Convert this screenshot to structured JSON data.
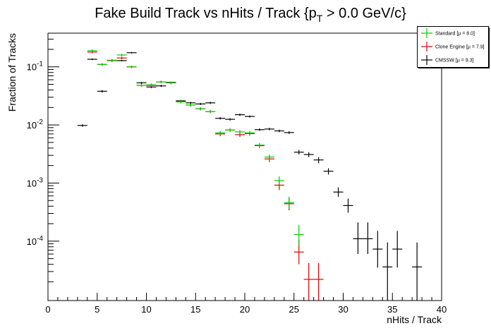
{
  "chart_data": {
    "type": "scatter",
    "title": "Fake Build Track vs nHits / Track {p",
    "title_sub": "T",
    "title_tail": " > 0.0 GeV/c}",
    "xlabel": "nHits / Track",
    "ylabel": "Fraction of Tracks",
    "xlim": [
      0,
      40
    ],
    "ylim": [
      9.5e-06,
      0.38
    ],
    "yscale": "log",
    "x_ticks": [
      "0",
      "5",
      "10",
      "15",
      "20",
      "25",
      "30",
      "35",
      "40"
    ],
    "y_ticks": [
      {
        "base": "10",
        "exp": "-1",
        "value": 0.1
      },
      {
        "base": "10",
        "exp": "-2",
        "value": 0.01
      },
      {
        "base": "10",
        "exp": "-3",
        "value": 0.001
      },
      {
        "base": "10",
        "exp": "-4",
        "value": 0.0001
      }
    ],
    "legend_position": "top-right",
    "series": [
      {
        "name": "Standard",
        "legend_text": "Standard  [μ = 8.0]",
        "color": "#00cc00",
        "points": [
          {
            "x": 4.5,
            "y": 0.19,
            "ylo": 0.18,
            "yhi": 0.2
          },
          {
            "x": 5.5,
            "y": 0.11,
            "ylo": 0.104,
            "yhi": 0.116
          },
          {
            "x": 6.5,
            "y": 0.13,
            "ylo": 0.123,
            "yhi": 0.137
          },
          {
            "x": 7.5,
            "y": 0.16,
            "ylo": 0.152,
            "yhi": 0.168
          },
          {
            "x": 8.5,
            "y": 0.1,
            "ylo": 0.095,
            "yhi": 0.105
          },
          {
            "x": 9.5,
            "y": 0.048,
            "ylo": 0.045,
            "yhi": 0.051
          },
          {
            "x": 10.5,
            "y": 0.049,
            "ylo": 0.046,
            "yhi": 0.052
          },
          {
            "x": 11.5,
            "y": 0.055,
            "ylo": 0.052,
            "yhi": 0.058
          },
          {
            "x": 12.5,
            "y": 0.053,
            "ylo": 0.05,
            "yhi": 0.056
          },
          {
            "x": 13.5,
            "y": 0.025,
            "ylo": 0.0235,
            "yhi": 0.0265
          },
          {
            "x": 14.5,
            "y": 0.022,
            "ylo": 0.0207,
            "yhi": 0.0233
          },
          {
            "x": 15.5,
            "y": 0.019,
            "ylo": 0.0178,
            "yhi": 0.0202
          },
          {
            "x": 16.5,
            "y": 0.017,
            "ylo": 0.0159,
            "yhi": 0.0181
          },
          {
            "x": 17.5,
            "y": 0.0073,
            "ylo": 0.0067,
            "yhi": 0.0079
          },
          {
            "x": 18.5,
            "y": 0.0082,
            "ylo": 0.0076,
            "yhi": 0.0088
          },
          {
            "x": 19.5,
            "y": 0.0076,
            "ylo": 0.007,
            "yhi": 0.0082
          },
          {
            "x": 20.5,
            "y": 0.0073,
            "ylo": 0.0067,
            "yhi": 0.0079
          },
          {
            "x": 21.5,
            "y": 0.0045,
            "ylo": 0.0041,
            "yhi": 0.0049
          },
          {
            "x": 22.5,
            "y": 0.0028,
            "ylo": 0.0025,
            "yhi": 0.0031
          },
          {
            "x": 23.5,
            "y": 0.0011,
            "ylo": 0.00092,
            "yhi": 0.0013
          },
          {
            "x": 24.5,
            "y": 0.00046,
            "ylo": 0.00036,
            "yhi": 0.00058
          },
          {
            "x": 25.5,
            "y": 0.00013,
            "ylo": 8.5e-05,
            "yhi": 0.00019
          }
        ]
      },
      {
        "name": "Clone Engine",
        "legend_text": "Clone Engine  [μ = 7.9]",
        "color": "#dd0000",
        "points": [
          {
            "x": 4.5,
            "y": 0.18,
            "ylo": 0.171,
            "yhi": 0.189
          },
          {
            "x": 5.5,
            "y": 0.11,
            "ylo": 0.104,
            "yhi": 0.116
          },
          {
            "x": 6.5,
            "y": 0.128,
            "ylo": 0.121,
            "yhi": 0.135
          },
          {
            "x": 7.5,
            "y": 0.142,
            "ylo": 0.135,
            "yhi": 0.149
          },
          {
            "x": 8.5,
            "y": 0.1,
            "ylo": 0.095,
            "yhi": 0.105
          },
          {
            "x": 9.5,
            "y": 0.048,
            "ylo": 0.045,
            "yhi": 0.051
          },
          {
            "x": 10.5,
            "y": 0.048,
            "ylo": 0.045,
            "yhi": 0.051
          },
          {
            "x": 11.5,
            "y": 0.055,
            "ylo": 0.052,
            "yhi": 0.058
          },
          {
            "x": 12.5,
            "y": 0.053,
            "ylo": 0.05,
            "yhi": 0.056
          },
          {
            "x": 13.5,
            "y": 0.025,
            "ylo": 0.0235,
            "yhi": 0.0265
          },
          {
            "x": 14.5,
            "y": 0.022,
            "ylo": 0.0207,
            "yhi": 0.0233
          },
          {
            "x": 15.5,
            "y": 0.019,
            "ylo": 0.0178,
            "yhi": 0.0202
          },
          {
            "x": 16.5,
            "y": 0.017,
            "ylo": 0.0159,
            "yhi": 0.0181
          },
          {
            "x": 17.5,
            "y": 0.007,
            "ylo": 0.0064,
            "yhi": 0.0076
          },
          {
            "x": 18.5,
            "y": 0.0082,
            "ylo": 0.0076,
            "yhi": 0.0088
          },
          {
            "x": 19.5,
            "y": 0.0068,
            "ylo": 0.0062,
            "yhi": 0.0074
          },
          {
            "x": 20.5,
            "y": 0.0071,
            "ylo": 0.0065,
            "yhi": 0.0077
          },
          {
            "x": 21.5,
            "y": 0.0044,
            "ylo": 0.004,
            "yhi": 0.0048
          },
          {
            "x": 22.5,
            "y": 0.0026,
            "ylo": 0.0023,
            "yhi": 0.0029
          },
          {
            "x": 23.5,
            "y": 0.00092,
            "ylo": 0.00076,
            "yhi": 0.0011
          },
          {
            "x": 24.5,
            "y": 0.00044,
            "ylo": 0.00034,
            "yhi": 0.00056
          },
          {
            "x": 25.5,
            "y": 6.5e-05,
            "ylo": 4e-05,
            "yhi": 0.000105
          },
          {
            "x": 26.5,
            "y": 2.2e-05,
            "ylo": 9.5e-06,
            "yhi": 4.2e-05
          },
          {
            "x": 27.5,
            "y": 2.2e-05,
            "ylo": 9.5e-06,
            "yhi": 4.2e-05
          }
        ]
      },
      {
        "name": "CMSSW",
        "legend_text": "CMSSW  [μ = 9.3]",
        "color": "#000000",
        "points": [
          {
            "x": 3.5,
            "y": 0.0098,
            "ylo": 0.0093,
            "yhi": 0.0103
          },
          {
            "x": 4.5,
            "y": 0.135,
            "ylo": 0.131,
            "yhi": 0.139
          },
          {
            "x": 5.5,
            "y": 0.038,
            "ylo": 0.036,
            "yhi": 0.04
          },
          {
            "x": 6.5,
            "y": 0.128,
            "ylo": 0.124,
            "yhi": 0.132
          },
          {
            "x": 7.5,
            "y": 0.128,
            "ylo": 0.124,
            "yhi": 0.132
          },
          {
            "x": 8.5,
            "y": 0.175,
            "ylo": 0.17,
            "yhi": 0.18
          },
          {
            "x": 9.5,
            "y": 0.053,
            "ylo": 0.051,
            "yhi": 0.055
          },
          {
            "x": 10.5,
            "y": 0.045,
            "ylo": 0.043,
            "yhi": 0.047
          },
          {
            "x": 11.5,
            "y": 0.047,
            "ylo": 0.045,
            "yhi": 0.049
          },
          {
            "x": 12.5,
            "y": 0.054,
            "ylo": 0.052,
            "yhi": 0.056
          },
          {
            "x": 13.5,
            "y": 0.026,
            "ylo": 0.025,
            "yhi": 0.027
          },
          {
            "x": 14.5,
            "y": 0.024,
            "ylo": 0.023,
            "yhi": 0.025
          },
          {
            "x": 15.5,
            "y": 0.023,
            "ylo": 0.022,
            "yhi": 0.024
          },
          {
            "x": 16.5,
            "y": 0.024,
            "ylo": 0.023,
            "yhi": 0.025
          },
          {
            "x": 17.5,
            "y": 0.013,
            "ylo": 0.0124,
            "yhi": 0.0136
          },
          {
            "x": 18.5,
            "y": 0.0125,
            "ylo": 0.0119,
            "yhi": 0.0131
          },
          {
            "x": 19.5,
            "y": 0.015,
            "ylo": 0.0143,
            "yhi": 0.0157
          },
          {
            "x": 20.5,
            "y": 0.014,
            "ylo": 0.0134,
            "yhi": 0.0146
          },
          {
            "x": 21.5,
            "y": 0.0083,
            "ylo": 0.0079,
            "yhi": 0.0087
          },
          {
            "x": 22.5,
            "y": 0.0085,
            "ylo": 0.0081,
            "yhi": 0.0089
          },
          {
            "x": 23.5,
            "y": 0.0079,
            "ylo": 0.0075,
            "yhi": 0.0083
          },
          {
            "x": 24.5,
            "y": 0.0074,
            "ylo": 0.007,
            "yhi": 0.0078
          },
          {
            "x": 25.5,
            "y": 0.0034,
            "ylo": 0.0031,
            "yhi": 0.0037
          },
          {
            "x": 26.5,
            "y": 0.0031,
            "ylo": 0.0028,
            "yhi": 0.0034
          },
          {
            "x": 27.5,
            "y": 0.0025,
            "ylo": 0.0022,
            "yhi": 0.0028
          },
          {
            "x": 28.5,
            "y": 0.0016,
            "ylo": 0.0014,
            "yhi": 0.0018
          },
          {
            "x": 29.5,
            "y": 0.0007,
            "ylo": 0.00058,
            "yhi": 0.00084
          },
          {
            "x": 30.5,
            "y": 0.00041,
            "ylo": 0.00031,
            "yhi": 0.00054
          },
          {
            "x": 31.5,
            "y": 0.00011,
            "ylo": 6e-05,
            "yhi": 0.00021
          },
          {
            "x": 32.5,
            "y": 0.00011,
            "ylo": 6e-05,
            "yhi": 0.00021
          },
          {
            "x": 33.5,
            "y": 7.3e-05,
            "ylo": 3.5e-05,
            "yhi": 0.00015
          },
          {
            "x": 34.5,
            "y": 3.6e-05,
            "ylo": 9.5e-06,
            "yhi": 9.5e-05
          },
          {
            "x": 35.5,
            "y": 7.3e-05,
            "ylo": 3.5e-05,
            "yhi": 0.00015
          },
          {
            "x": 37.5,
            "y": 3.6e-05,
            "ylo": 9.5e-06,
            "yhi": 9.5e-05
          }
        ]
      }
    ]
  }
}
